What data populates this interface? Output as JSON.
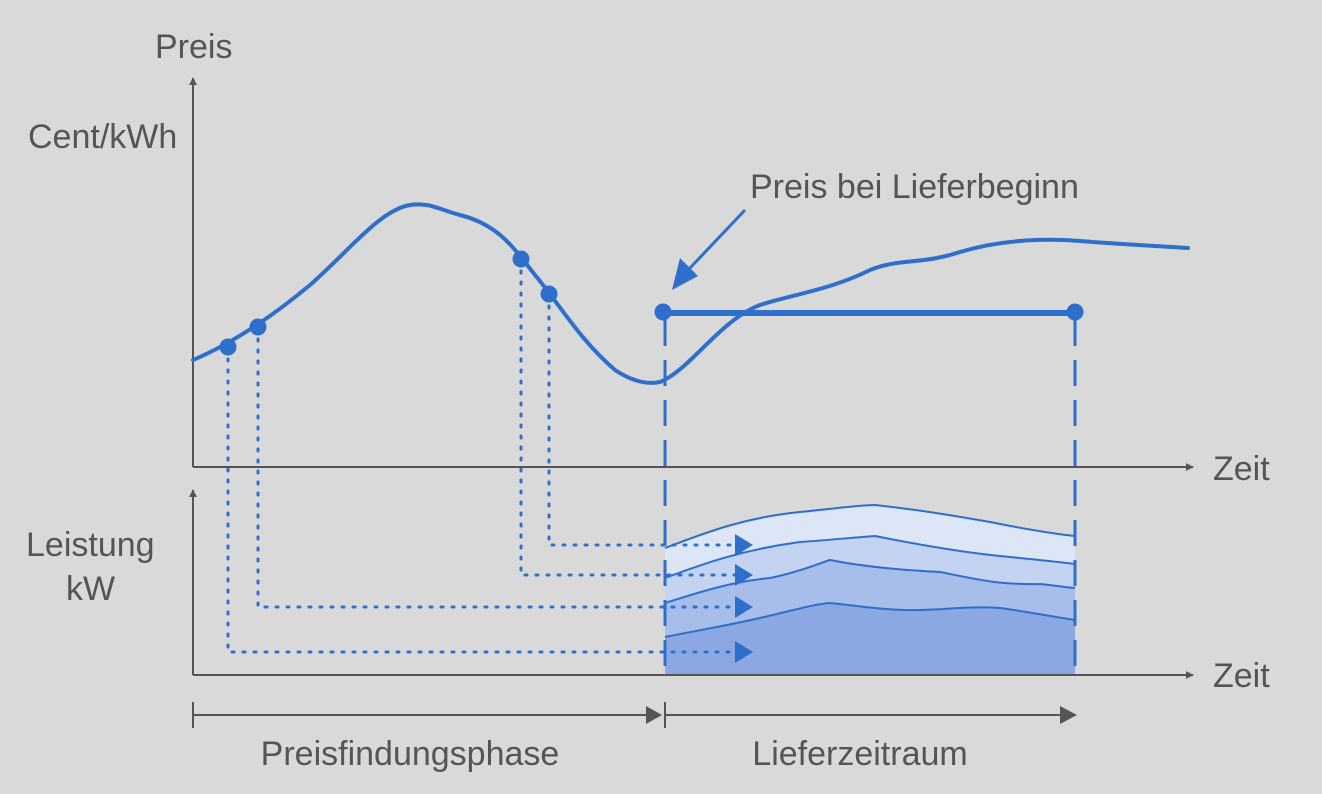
{
  "labels": {
    "price_axis_title": "Preis",
    "price_unit": "Cent/kWh",
    "time_axis_top": "Zeit",
    "power_axis_title": "Leistung",
    "power_unit": "kW",
    "time_axis_bottom": "Zeit",
    "delivery_price_annotation": "Preis bei Lieferbeginn",
    "phase_pricing": "Preisfindungsphase",
    "phase_delivery": "Lieferzeitraum"
  },
  "colors": {
    "background": "#d9d9d9",
    "axis": "#555555",
    "curve": "#2f6fcc",
    "band_1": "#8ca8e2",
    "band_2": "#a7bdea",
    "band_3": "#c3d3f1",
    "band_4": "#dce6f7"
  }
}
